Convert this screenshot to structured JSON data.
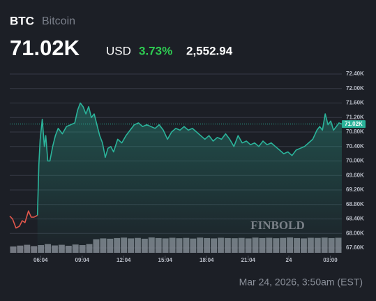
{
  "chart_data": {
    "type": "line",
    "title": "BTC",
    "subtitle": "Bitcoin",
    "price": "71.02K",
    "currency": "USD",
    "change_percent": "3.73%",
    "change": "2,552.94",
    "timestamp": "Mar 24, 2026, 3:50am (EST)",
    "watermark": "FINBOLD",
    "last_price": {
      "value": 71020,
      "label": "71.02K"
    },
    "xlim": [
      0,
      24
    ],
    "xticks": [
      {
        "value": 2.233,
        "label": "06:04"
      },
      {
        "value": 5.233,
        "label": "09:04"
      },
      {
        "value": 8.233,
        "label": "12:04"
      },
      {
        "value": 11.233,
        "label": "15:04"
      },
      {
        "value": 14.233,
        "label": "18:04"
      },
      {
        "value": 17.233,
        "label": "21:04"
      },
      {
        "value": 20.167,
        "label": "24"
      },
      {
        "value": 23.167,
        "label": "03:00"
      }
    ],
    "ylim": [
      67600,
      72400
    ],
    "yticks": [
      {
        "value": 72400,
        "label": "72.40K"
      },
      {
        "value": 72000,
        "label": "72.00K"
      },
      {
        "value": 71600,
        "label": "71.60K"
      },
      {
        "value": 71200,
        "label": "71.20K"
      },
      {
        "value": 70800,
        "label": "70.80K"
      },
      {
        "value": 70400,
        "label": "70.40K"
      },
      {
        "value": 70000,
        "label": "70.00K"
      },
      {
        "value": 69600,
        "label": "69.60K"
      },
      {
        "value": 69200,
        "label": "69.20K"
      },
      {
        "value": 68800,
        "label": "68.80K"
      },
      {
        "value": 68400,
        "label": "68.40K"
      },
      {
        "value": 68000,
        "label": "68.00K"
      },
      {
        "value": 67600,
        "label": "67.60K"
      }
    ],
    "grid": true,
    "series": [
      {
        "color": "#e2574c",
        "x": [
          0,
          0.2,
          0.45,
          0.7,
          0.9,
          1.1,
          1.35,
          1.55,
          1.75,
          2.0
        ],
        "values": [
          68480,
          68400,
          68150,
          68200,
          68350,
          68300,
          68620,
          68450,
          68450,
          68500
        ]
      },
      {
        "color": "#2bb39a",
        "x": [
          2.0,
          2.1,
          2.2,
          2.35,
          2.5,
          2.6,
          2.75,
          2.9,
          3.1,
          3.3,
          3.5,
          3.8,
          4.1,
          4.4,
          4.7,
          4.9,
          5.1,
          5.3,
          5.5,
          5.7,
          5.9,
          6.1,
          6.3,
          6.5,
          6.7,
          6.9,
          7.1,
          7.3,
          7.5,
          7.8,
          8.1,
          8.4,
          8.7,
          9.0,
          9.3,
          9.6,
          9.9,
          10.2,
          10.5,
          10.8,
          11.1,
          11.4,
          11.7,
          12.0,
          12.3,
          12.6,
          12.9,
          13.2,
          13.5,
          13.8,
          14.1,
          14.4,
          14.7,
          15.0,
          15.3,
          15.6,
          15.9,
          16.2,
          16.5,
          16.8,
          17.1,
          17.4,
          17.7,
          18.0,
          18.3,
          18.6,
          18.9,
          19.2,
          19.5,
          19.8,
          20.1,
          20.4,
          20.7,
          21.0,
          21.3,
          21.6,
          21.9,
          22.2,
          22.4,
          22.6,
          22.8,
          23.0,
          23.2,
          23.4,
          23.6,
          23.8,
          24
        ],
        "values": [
          68500,
          69900,
          70600,
          71150,
          70400,
          70700,
          70000,
          70000,
          70400,
          70700,
          70900,
          70750,
          70950,
          71000,
          71050,
          71400,
          71600,
          71500,
          71300,
          71500,
          71200,
          71300,
          71000,
          70700,
          70500,
          70100,
          70350,
          70400,
          70250,
          70600,
          70500,
          70700,
          70850,
          71000,
          71050,
          70950,
          71000,
          70950,
          70900,
          71000,
          70850,
          70600,
          70800,
          70900,
          70850,
          70950,
          70850,
          70900,
          70800,
          70700,
          70600,
          70700,
          70550,
          70650,
          70600,
          70750,
          70600,
          70400,
          70700,
          70500,
          70550,
          70450,
          70500,
          70400,
          70550,
          70450,
          70500,
          70400,
          70300,
          70200,
          70250,
          70150,
          70300,
          70350,
          70400,
          70500,
          70600,
          70850,
          70950,
          70850,
          71300,
          71000,
          71100,
          70850,
          70950,
          71050,
          71020
        ]
      }
    ],
    "volume": [
      40,
      45,
      50,
      42,
      48,
      55,
      46,
      50,
      44,
      52,
      48,
      55,
      85,
      90,
      88,
      92,
      95,
      90,
      93,
      88,
      96,
      92,
      90,
      94,
      91,
      93,
      89,
      95,
      92,
      90,
      94,
      92,
      91,
      93,
      90,
      95,
      92,
      94,
      91,
      93,
      96,
      92,
      90,
      94,
      93,
      95,
      92,
      94
    ]
  }
}
